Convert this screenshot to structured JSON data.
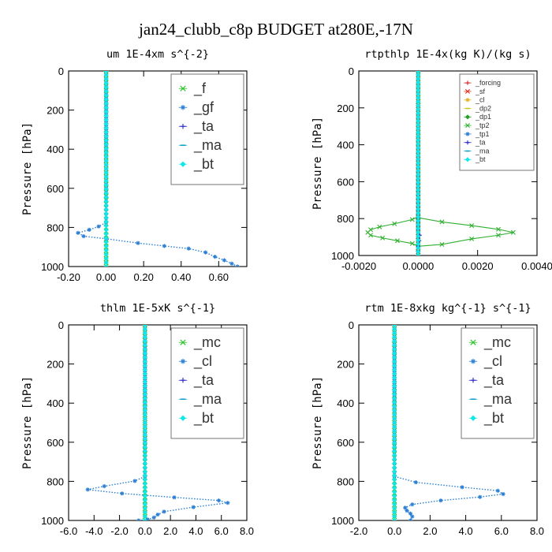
{
  "figure": {
    "suptitle": "jan24_clubb_c8p  BUDGET at280E,-17N"
  },
  "chart_data": [
    {
      "type": "line",
      "title": "um  1E-4xm s^{-2}",
      "ylabel": "Pressure [hPa]",
      "xlim": [
        -0.2,
        0.75
      ],
      "ylim": [
        1000,
        0
      ],
      "xticks": [
        -0.2,
        0.0,
        0.2,
        0.4,
        0.6
      ],
      "xtick_labels": [
        "-0.20",
        "0.00",
        "0.20",
        "0.40",
        "0.60"
      ],
      "yticks": [
        0,
        200,
        400,
        600,
        800,
        1000
      ],
      "ytick_labels": [
        "0",
        "200",
        "400",
        "600",
        "800",
        "1000"
      ],
      "legend": {
        "placement": "top-right",
        "size": "large"
      },
      "series": [
        {
          "name": "_f",
          "color": "#22c322",
          "marker": "x",
          "style": "solid",
          "points": [
            [
              0.0,
              0
            ],
            [
              0.0,
              200
            ],
            [
              0.0,
              400
            ],
            [
              0.0,
              600
            ],
            [
              0.0,
              800
            ],
            [
              0.0,
              1000
            ]
          ]
        },
        {
          "name": "_gf",
          "color": "#2a7fd4",
          "marker": "star",
          "style": "dotted",
          "points": [
            [
              0.0,
              0
            ],
            [
              0.0,
              200
            ],
            [
              0.0,
              400
            ],
            [
              0.0,
              600
            ],
            [
              0.0,
              775
            ],
            [
              -0.04,
              795
            ],
            [
              -0.09,
              812
            ],
            [
              -0.15,
              828
            ],
            [
              -0.12,
              845
            ],
            [
              0.0,
              858
            ],
            [
              0.17,
              880
            ],
            [
              0.31,
              895
            ],
            [
              0.44,
              908
            ],
            [
              0.53,
              928
            ],
            [
              0.58,
              950
            ],
            [
              0.63,
              968
            ],
            [
              0.67,
              985
            ],
            [
              0.7,
              1000
            ]
          ]
        },
        {
          "name": "_ta",
          "color": "#2222cc",
          "marker": "plus",
          "style": "solid",
          "points": [
            [
              0.0,
              0
            ],
            [
              0.0,
              500
            ],
            [
              0.0,
              1000
            ]
          ]
        },
        {
          "name": "_ma",
          "color": "#10a0c8",
          "marker": "dash",
          "style": "solid",
          "points": [
            [
              0.0,
              0
            ],
            [
              0.0,
              500
            ],
            [
              0.0,
              1000
            ]
          ]
        },
        {
          "name": "_bt",
          "color": "#10e8e8",
          "marker": "diamond",
          "style": "solid",
          "points": [
            [
              0.0,
              0
            ],
            [
              0.0,
              500
            ],
            [
              0.0,
              1000
            ]
          ]
        }
      ]
    },
    {
      "type": "line",
      "title": "rtpthlp  1E-4x(kg K)/(kg s)",
      "ylabel": "Pressure [hPa]",
      "xlim": [
        -0.002,
        0.004
      ],
      "ylim": [
        1000,
        0
      ],
      "xticks": [
        -0.002,
        0.0,
        0.002,
        0.004
      ],
      "xtick_labels": [
        "-0.0020",
        "0.0000",
        "0.0020",
        "0.0040"
      ],
      "yticks": [
        0,
        200,
        400,
        600,
        800,
        1000
      ],
      "ytick_labels": [
        "0",
        "200",
        "400",
        "600",
        "800",
        "1000"
      ],
      "legend": {
        "placement": "top-right",
        "size": "small"
      },
      "series": [
        {
          "name": "_forcing",
          "color": "#d42020",
          "marker": "plus",
          "style": "solid",
          "points": [
            [
              0.0,
              0
            ],
            [
              0.0,
              500
            ],
            [
              0.0,
              1000
            ]
          ]
        },
        {
          "name": "_sf",
          "color": "#e03020",
          "marker": "x",
          "style": "solid",
          "points": [
            [
              0.0,
              0
            ],
            [
              0.0,
              500
            ],
            [
              0.0,
              1000
            ]
          ]
        },
        {
          "name": "_cl",
          "color": "#e8b020",
          "marker": "star",
          "style": "solid",
          "points": [
            [
              0.0,
              0
            ],
            [
              0.0,
              500
            ],
            [
              0.0,
              1000
            ]
          ]
        },
        {
          "name": "_dp2",
          "color": "#c8c820",
          "marker": "dash",
          "style": "solid",
          "points": [
            [
              0.0,
              0
            ],
            [
              0.0,
              500
            ],
            [
              0.0,
              1000
            ]
          ]
        },
        {
          "name": "_dp1",
          "color": "#20a020",
          "marker": "diamond",
          "style": "solid",
          "points": [
            [
              0.0,
              0
            ],
            [
              0.0,
              500
            ],
            [
              0.0,
              1000
            ]
          ]
        },
        {
          "name": "_tp2",
          "color": "#30b030",
          "marker": "x",
          "style": "solid",
          "points": [
            [
              0.0,
              0
            ],
            [
              0.0,
              790
            ],
            [
              -0.0002,
              805
            ],
            [
              -0.0008,
              828
            ],
            [
              -0.0013,
              845
            ],
            [
              -0.0016,
              860
            ],
            [
              -0.0017,
              875
            ],
            [
              -0.0016,
              890
            ],
            [
              -0.0012,
              905
            ],
            [
              -0.0007,
              920
            ],
            [
              -0.0002,
              935
            ],
            [
              0.0,
              950
            ],
            [
              0.0008,
              940
            ],
            [
              0.0018,
              910
            ],
            [
              0.0027,
              890
            ],
            [
              0.0032,
              875
            ],
            [
              0.0027,
              858
            ],
            [
              0.0018,
              838
            ],
            [
              0.0008,
              818
            ],
            [
              0.0,
              795
            ],
            [
              0.0,
              1000
            ]
          ]
        },
        {
          "name": "_tp1",
          "color": "#2a7fd4",
          "marker": "star",
          "style": "solid",
          "points": [
            [
              0.0,
              0
            ],
            [
              0.0,
              500
            ],
            [
              0.0,
              1000
            ]
          ]
        },
        {
          "name": "_ta",
          "color": "#2222cc",
          "marker": "plus",
          "style": "solid",
          "points": [
            [
              0.0,
              0
            ],
            [
              0.0,
              860
            ],
            [
              5e-05,
              890
            ],
            [
              3e-05,
              920
            ],
            [
              0.0,
              950
            ],
            [
              0.0,
              1000
            ]
          ]
        },
        {
          "name": "_ma",
          "color": "#10a0c8",
          "marker": "dash",
          "style": "solid",
          "points": [
            [
              0.0,
              0
            ],
            [
              0.0,
              500
            ],
            [
              0.0,
              1000
            ]
          ]
        },
        {
          "name": "_bt",
          "color": "#10e8e8",
          "marker": "diamond",
          "style": "solid",
          "points": [
            [
              0.0,
              0
            ],
            [
              0.0,
              500
            ],
            [
              0.0,
              1000
            ]
          ]
        }
      ]
    },
    {
      "type": "line",
      "title": "thlm  1E-5xK s^{-1}",
      "ylabel": "Pressure [hPa]",
      "xlim": [
        -6,
        8
      ],
      "ylim": [
        1000,
        0
      ],
      "xticks": [
        -6,
        -4,
        -2,
        0,
        2,
        4,
        6,
        8
      ],
      "xtick_labels": [
        "-6.0",
        "-4.0",
        "-2.0",
        "0.0",
        "2.0",
        "4.0",
        "6.0",
        "8.0"
      ],
      "yticks": [
        0,
        200,
        400,
        600,
        800,
        1000
      ],
      "ytick_labels": [
        "0",
        "200",
        "400",
        "600",
        "800",
        "1000"
      ],
      "legend": {
        "placement": "top-right",
        "size": "large"
      },
      "series": [
        {
          "name": "_mc",
          "color": "#22c322",
          "marker": "x",
          "style": "solid",
          "points": [
            [
              0.0,
              0
            ],
            [
              0.0,
              200
            ],
            [
              0.0,
              400
            ],
            [
              0.0,
              600
            ],
            [
              0.0,
              800
            ],
            [
              0.0,
              1000
            ]
          ]
        },
        {
          "name": "_cl",
          "color": "#2a7fd4",
          "marker": "star",
          "style": "dotted",
          "points": [
            [
              0.0,
              0
            ],
            [
              0.0,
              200
            ],
            [
              0.0,
              400
            ],
            [
              0.0,
              600
            ],
            [
              0.0,
              775
            ],
            [
              -0.8,
              798
            ],
            [
              -3.2,
              825
            ],
            [
              -4.5,
              842
            ],
            [
              -1.8,
              862
            ],
            [
              2.3,
              882
            ],
            [
              5.8,
              898
            ],
            [
              6.5,
              910
            ],
            [
              3.8,
              932
            ],
            [
              1.5,
              955
            ],
            [
              1.0,
              970
            ],
            [
              0.7,
              985
            ],
            [
              0.2,
              995
            ],
            [
              -0.5,
              1000
            ]
          ]
        },
        {
          "name": "_ta",
          "color": "#2222cc",
          "marker": "plus",
          "style": "solid",
          "points": [
            [
              0.0,
              0
            ],
            [
              0.0,
              500
            ],
            [
              0.0,
              1000
            ]
          ]
        },
        {
          "name": "_ma",
          "color": "#10a0c8",
          "marker": "dash",
          "style": "solid",
          "points": [
            [
              0.0,
              0
            ],
            [
              0.0,
              500
            ],
            [
              0.0,
              1000
            ]
          ]
        },
        {
          "name": "_bt",
          "color": "#10e8e8",
          "marker": "diamond",
          "style": "solid",
          "points": [
            [
              0.0,
              0
            ],
            [
              0.0,
              500
            ],
            [
              0.0,
              1000
            ]
          ]
        }
      ]
    },
    {
      "type": "line",
      "title": "rtm  1E-8xkg kg^{-1} s^{-1}",
      "ylabel": "Pressure [hPa]",
      "xlim": [
        -2,
        8
      ],
      "ylim": [
        1000,
        0
      ],
      "xticks": [
        -2,
        0,
        2,
        4,
        6,
        8
      ],
      "xtick_labels": [
        "-2.0",
        "0.0",
        "2.0",
        "4.0",
        "6.0",
        "8.0"
      ],
      "yticks": [
        0,
        200,
        400,
        600,
        800,
        1000
      ],
      "ytick_labels": [
        "0",
        "200",
        "400",
        "600",
        "800",
        "1000"
      ],
      "legend": {
        "placement": "top-right",
        "size": "large"
      },
      "series": [
        {
          "name": "_mc",
          "color": "#22c322",
          "marker": "x",
          "style": "solid",
          "points": [
            [
              0.0,
              0
            ],
            [
              0.0,
              200
            ],
            [
              0.0,
              400
            ],
            [
              0.0,
              600
            ],
            [
              0.0,
              800
            ],
            [
              0.0,
              1000
            ]
          ]
        },
        {
          "name": "_cl",
          "color": "#2a7fd4",
          "marker": "star",
          "style": "dotted",
          "points": [
            [
              0.0,
              0
            ],
            [
              0.0,
              200
            ],
            [
              0.0,
              400
            ],
            [
              0.0,
              600
            ],
            [
              0.0,
              775
            ],
            [
              1.2,
              805
            ],
            [
              3.8,
              830
            ],
            [
              5.8,
              848
            ],
            [
              6.1,
              865
            ],
            [
              4.8,
              880
            ],
            [
              2.6,
              898
            ],
            [
              1.0,
              918
            ],
            [
              0.6,
              935
            ],
            [
              0.7,
              950
            ],
            [
              0.9,
              965
            ],
            [
              1.0,
              980
            ],
            [
              0.9,
              1000
            ]
          ]
        },
        {
          "name": "_ta",
          "color": "#2222cc",
          "marker": "plus",
          "style": "solid",
          "points": [
            [
              0.0,
              0
            ],
            [
              0.0,
              500
            ],
            [
              0.0,
              1000
            ]
          ]
        },
        {
          "name": "_ma",
          "color": "#10a0c8",
          "marker": "dash",
          "style": "solid",
          "points": [
            [
              0.0,
              0
            ],
            [
              0.0,
              500
            ],
            [
              0.0,
              1000
            ]
          ]
        },
        {
          "name": "_bt",
          "color": "#10e8e8",
          "marker": "diamond",
          "style": "solid",
          "points": [
            [
              0.0,
              0
            ],
            [
              0.0,
              500
            ],
            [
              0.0,
              1000
            ]
          ]
        }
      ]
    }
  ]
}
